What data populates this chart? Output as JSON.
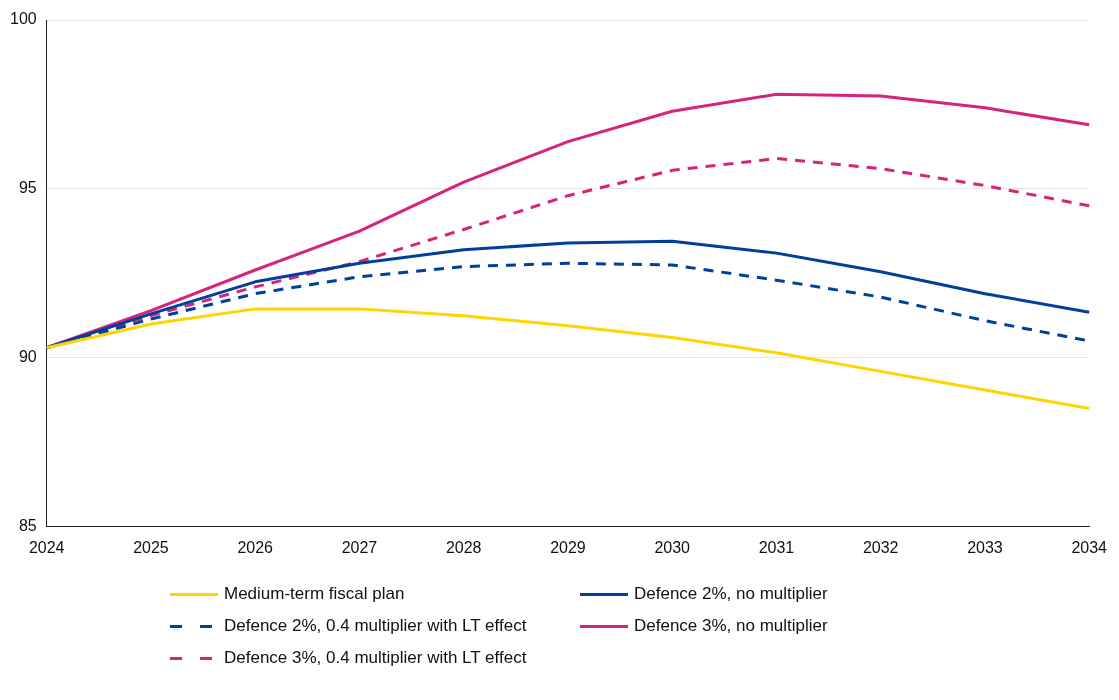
{
  "chart_data": {
    "type": "line",
    "categories": [
      "2024",
      "2025",
      "2026",
      "2027",
      "2028",
      "2029",
      "2030",
      "2031",
      "2032",
      "2033",
      "2034"
    ],
    "ylim": [
      85,
      100
    ],
    "yticks": [
      85,
      90,
      95,
      100
    ],
    "grid": "y",
    "legend": "bottom",
    "marker": "none",
    "series": [
      {
        "name": "Medium-term fiscal plan",
        "color": "#ffd400",
        "line_style": "solid",
        "values": [
          90.3,
          91.0,
          91.45,
          91.45,
          91.25,
          90.95,
          90.6,
          90.15,
          89.6,
          89.05,
          88.5
        ]
      },
      {
        "name": "Defence 2%, no multiplier",
        "color": "#003f9a",
        "line_style": "solid",
        "values": [
          90.3,
          91.3,
          92.25,
          92.8,
          93.2,
          93.4,
          93.45,
          93.1,
          92.55,
          91.9,
          91.35
        ]
      },
      {
        "name": "Defence 2%, 0.4 multiplier with LT effect",
        "color": "#003f9a",
        "line_style": "dashed",
        "values": [
          90.3,
          91.15,
          91.9,
          92.4,
          92.7,
          92.8,
          92.75,
          92.3,
          91.8,
          91.1,
          90.5
        ]
      },
      {
        "name": "Defence 3%, no multiplier",
        "color": "#d6247d",
        "line_style": "solid",
        "values": [
          90.3,
          91.4,
          92.6,
          93.75,
          95.2,
          96.4,
          97.3,
          97.8,
          97.75,
          97.4,
          96.9
        ]
      },
      {
        "name": "Defence 3%, 0.4 multiplier with LT effect",
        "color": "#d6247d",
        "line_style": "dashed",
        "values": [
          90.3,
          91.25,
          92.1,
          92.85,
          93.8,
          94.8,
          95.55,
          95.9,
          95.6,
          95.1,
          94.5
        ]
      }
    ]
  }
}
